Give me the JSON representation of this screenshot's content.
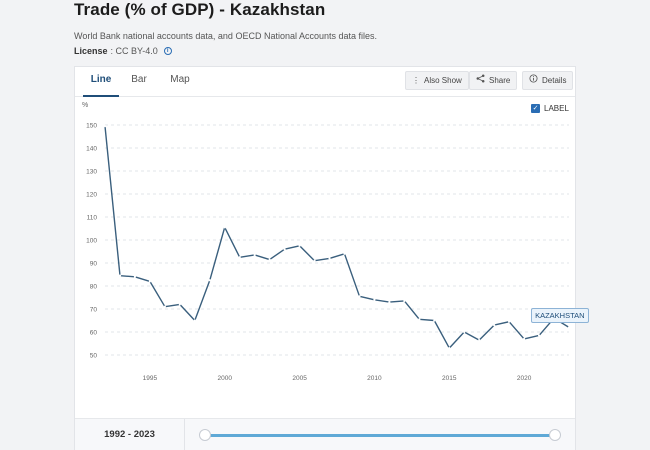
{
  "header": {
    "title": "Trade (% of GDP) - Kazakhstan",
    "subtitle": "World Bank national accounts data, and OECD National Accounts data files.",
    "license_label": "License",
    "license_value": ": CC BY-4.0"
  },
  "tabs": [
    {
      "label": "Line",
      "active": true
    },
    {
      "label": "Bar",
      "active": false
    },
    {
      "label": "Map",
      "active": false
    }
  ],
  "toolbar": {
    "also_show_label": "Also Show",
    "share_label": "Share",
    "details_label": "Details"
  },
  "legend": {
    "label": "LABEL",
    "checked": true
  },
  "footer": {
    "range_label": "1992 - 2023"
  },
  "tooltip": {
    "label": "KAZAKHSTAN"
  },
  "colors": {
    "line": "#3a5f7d",
    "accent": "#2a6db4",
    "slider": "#5fa9d6"
  },
  "chart_data": {
    "type": "line",
    "title": "",
    "xlabel": "",
    "ylabel": "%",
    "xlim": [
      1992,
      2023
    ],
    "ylim": [
      50,
      150
    ],
    "yticks": [
      50,
      60,
      70,
      80,
      90,
      100,
      110,
      120,
      130,
      140,
      150
    ],
    "xticks": [
      1995,
      2000,
      2005,
      2010,
      2015,
      2020
    ],
    "grid": true,
    "series": [
      {
        "name": "KAZAKHSTAN",
        "x": [
          1992,
          1993,
          1994,
          1995,
          1996,
          1997,
          1998,
          1999,
          2000,
          2001,
          2002,
          2003,
          2004,
          2005,
          2006,
          2007,
          2008,
          2009,
          2010,
          2011,
          2012,
          2013,
          2014,
          2015,
          2016,
          2017,
          2018,
          2019,
          2020,
          2021,
          2022,
          2023
        ],
        "y": [
          149.5,
          84.5,
          84,
          82,
          71,
          72,
          65,
          82.5,
          105.5,
          92.5,
          93.5,
          91.5,
          96,
          97.5,
          91,
          92,
          94,
          75.5,
          74,
          73,
          73.5,
          65.5,
          65,
          53,
          60,
          56.5,
          63,
          64.5,
          57,
          58.5,
          66,
          62
        ]
      }
    ]
  }
}
